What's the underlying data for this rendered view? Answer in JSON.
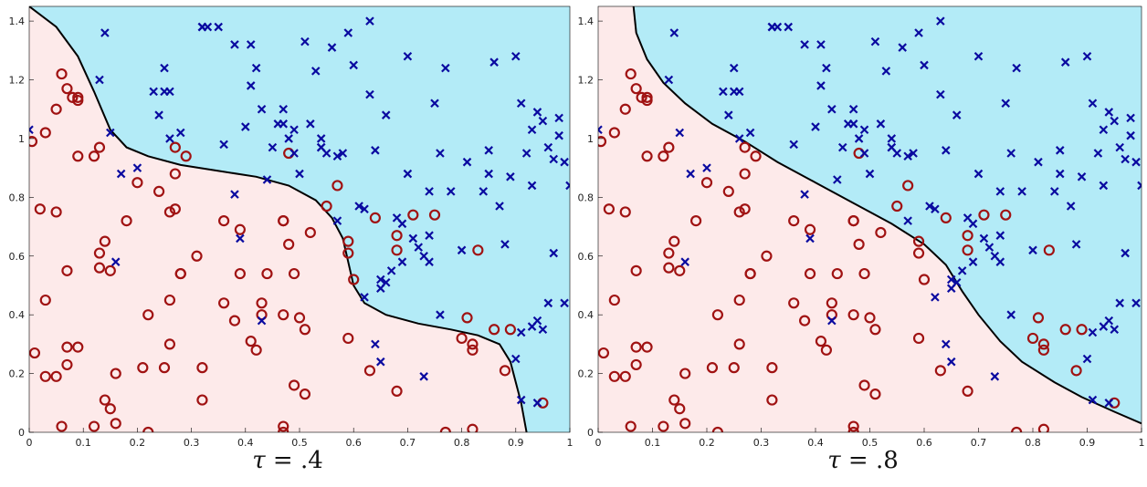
{
  "colors": {
    "class_a_region": "#fdeaea",
    "class_b_region": "#b3ebf7",
    "class_a_marker": "#a01212",
    "class_b_marker": "#0a0aa0",
    "boundary": "#000000"
  },
  "chart_data": [
    {
      "type": "scatter",
      "caption_symbol": "τ",
      "caption_value": "= .4",
      "xlim": [
        0,
        1
      ],
      "ylim": [
        0,
        1.45
      ],
      "xticks": [
        "0",
        "0.1",
        "0.2",
        "0.3",
        "0.4",
        "0.5",
        "0.6",
        "0.7",
        "0.8",
        "0.9",
        "1"
      ],
      "yticks": [
        "0",
        "0.2",
        "0.4",
        "0.6",
        "0.8",
        "1",
        "1.2",
        "1.4"
      ],
      "grid": false,
      "boundary": [
        [
          0.0,
          1.45
        ],
        [
          0.05,
          1.38
        ],
        [
          0.09,
          1.28
        ],
        [
          0.12,
          1.16
        ],
        [
          0.15,
          1.03
        ],
        [
          0.18,
          0.97
        ],
        [
          0.22,
          0.94
        ],
        [
          0.28,
          0.91
        ],
        [
          0.35,
          0.89
        ],
        [
          0.42,
          0.87
        ],
        [
          0.48,
          0.84
        ],
        [
          0.53,
          0.79
        ],
        [
          0.56,
          0.73
        ],
        [
          0.58,
          0.66
        ],
        [
          0.59,
          0.58
        ],
        [
          0.6,
          0.5
        ],
        [
          0.62,
          0.44
        ],
        [
          0.66,
          0.4
        ],
        [
          0.72,
          0.37
        ],
        [
          0.78,
          0.35
        ],
        [
          0.83,
          0.33
        ],
        [
          0.87,
          0.3
        ],
        [
          0.89,
          0.24
        ],
        [
          0.91,
          0.1
        ],
        [
          0.92,
          0.0
        ]
      ]
    },
    {
      "type": "scatter",
      "caption_symbol": "τ",
      "caption_value": "= .8",
      "xlim": [
        0,
        1
      ],
      "ylim": [
        0,
        1.45
      ],
      "xticks": [
        "0",
        "0.1",
        "0.2",
        "0.3",
        "0.4",
        "0.5",
        "0.6",
        "0.7",
        "0.8",
        "0.9",
        "1"
      ],
      "yticks": [
        "0",
        "0.2",
        "0.4",
        "0.6",
        "0.8",
        "1",
        "1.2",
        "1.4"
      ],
      "grid": false,
      "boundary": [
        [
          0.065,
          1.45
        ],
        [
          0.07,
          1.36
        ],
        [
          0.09,
          1.27
        ],
        [
          0.12,
          1.19
        ],
        [
          0.16,
          1.12
        ],
        [
          0.21,
          1.05
        ],
        [
          0.27,
          0.99
        ],
        [
          0.33,
          0.92
        ],
        [
          0.4,
          0.85
        ],
        [
          0.47,
          0.78
        ],
        [
          0.54,
          0.71
        ],
        [
          0.6,
          0.64
        ],
        [
          0.64,
          0.57
        ],
        [
          0.67,
          0.48
        ],
        [
          0.7,
          0.4
        ],
        [
          0.74,
          0.31
        ],
        [
          0.78,
          0.24
        ],
        [
          0.84,
          0.17
        ],
        [
          0.89,
          0.12
        ],
        [
          0.95,
          0.07
        ],
        [
          1.0,
          0.03
        ]
      ]
    }
  ],
  "points": {
    "class_a_marker": "circle",
    "class_b_marker": "cross",
    "class_a": [
      [
        0.005,
        0.99
      ],
      [
        0.03,
        1.02
      ],
      [
        0.05,
        1.1
      ],
      [
        0.06,
        1.22
      ],
      [
        0.07,
        1.17
      ],
      [
        0.09,
        1.14
      ],
      [
        0.09,
        1.13
      ],
      [
        0.08,
        1.14
      ],
      [
        0.09,
        0.94
      ],
      [
        0.12,
        0.94
      ],
      [
        0.13,
        0.97
      ],
      [
        0.02,
        0.76
      ],
      [
        0.05,
        0.75
      ],
      [
        0.03,
        0.45
      ],
      [
        0.07,
        0.55
      ],
      [
        0.13,
        0.56
      ],
      [
        0.13,
        0.61
      ],
      [
        0.14,
        0.65
      ],
      [
        0.15,
        0.55
      ],
      [
        0.18,
        0.72
      ],
      [
        0.2,
        0.85
      ],
      [
        0.24,
        0.82
      ],
      [
        0.26,
        0.75
      ],
      [
        0.27,
        0.76
      ],
      [
        0.27,
        0.97
      ],
      [
        0.29,
        0.94
      ],
      [
        0.27,
        0.88
      ],
      [
        0.28,
        0.54
      ],
      [
        0.31,
        0.6
      ],
      [
        0.36,
        0.72
      ],
      [
        0.39,
        0.54
      ],
      [
        0.39,
        0.69
      ],
      [
        0.44,
        0.54
      ],
      [
        0.47,
        0.72
      ],
      [
        0.47,
        0.72
      ],
      [
        0.48,
        0.95
      ],
      [
        0.48,
        0.64
      ],
      [
        0.47,
        0.4
      ],
      [
        0.49,
        0.54
      ],
      [
        0.52,
        0.68
      ],
      [
        0.55,
        0.77
      ],
      [
        0.57,
        0.84
      ],
      [
        0.59,
        0.65
      ],
      [
        0.59,
        0.61
      ],
      [
        0.6,
        0.52
      ],
      [
        0.64,
        0.73
      ],
      [
        0.68,
        0.62
      ],
      [
        0.68,
        0.67
      ],
      [
        0.71,
        0.74
      ],
      [
        0.75,
        0.74
      ],
      [
        0.83,
        0.62
      ],
      [
        0.81,
        0.39
      ],
      [
        0.86,
        0.35
      ],
      [
        0.89,
        0.35
      ],
      [
        0.8,
        0.32
      ],
      [
        0.82,
        0.3
      ],
      [
        0.82,
        0.28
      ],
      [
        0.88,
        0.21
      ],
      [
        0.95,
        0.1
      ],
      [
        0.82,
        0.01
      ],
      [
        0.77,
        0.0
      ],
      [
        0.68,
        0.14
      ],
      [
        0.63,
        0.21
      ],
      [
        0.59,
        0.32
      ],
      [
        0.5,
        0.39
      ],
      [
        0.51,
        0.35
      ],
      [
        0.49,
        0.16
      ],
      [
        0.51,
        0.13
      ],
      [
        0.47,
        0.02
      ],
      [
        0.47,
        0.0
      ],
      [
        0.43,
        0.4
      ],
      [
        0.43,
        0.44
      ],
      [
        0.38,
        0.38
      ],
      [
        0.41,
        0.31
      ],
      [
        0.42,
        0.28
      ],
      [
        0.36,
        0.44
      ],
      [
        0.32,
        0.22
      ],
      [
        0.32,
        0.11
      ],
      [
        0.28,
        0.54
      ],
      [
        0.26,
        0.45
      ],
      [
        0.26,
        0.3
      ],
      [
        0.25,
        0.22
      ],
      [
        0.22,
        0.4
      ],
      [
        0.21,
        0.22
      ],
      [
        0.22,
        0.0
      ],
      [
        0.16,
        0.2
      ],
      [
        0.16,
        0.03
      ],
      [
        0.14,
        0.11
      ],
      [
        0.15,
        0.08
      ],
      [
        0.12,
        0.02
      ],
      [
        0.09,
        0.29
      ],
      [
        0.07,
        0.29
      ],
      [
        0.07,
        0.23
      ],
      [
        0.05,
        0.19
      ],
      [
        0.03,
        0.19
      ],
      [
        0.01,
        0.27
      ],
      [
        0.06,
        0.02
      ]
    ],
    "class_b": [
      [
        0.0,
        1.03
      ],
      [
        0.13,
        1.2
      ],
      [
        0.14,
        1.36
      ],
      [
        0.15,
        1.02
      ],
      [
        0.17,
        0.88
      ],
      [
        0.2,
        0.9
      ],
      [
        0.23,
        1.16
      ],
      [
        0.24,
        1.08
      ],
      [
        0.25,
        1.16
      ],
      [
        0.25,
        1.24
      ],
      [
        0.26,
        1.0
      ],
      [
        0.26,
        1.16
      ],
      [
        0.28,
        1.02
      ],
      [
        0.32,
        1.38
      ],
      [
        0.32,
        1.38
      ],
      [
        0.33,
        1.38
      ],
      [
        0.35,
        1.38
      ],
      [
        0.36,
        0.98
      ],
      [
        0.38,
        1.32
      ],
      [
        0.4,
        1.04
      ],
      [
        0.41,
        1.32
      ],
      [
        0.41,
        1.18
      ],
      [
        0.42,
        1.24
      ],
      [
        0.43,
        1.1
      ],
      [
        0.45,
        0.97
      ],
      [
        0.46,
        1.05
      ],
      [
        0.47,
        1.05
      ],
      [
        0.47,
        1.1
      ],
      [
        0.48,
        1.0
      ],
      [
        0.49,
        1.03
      ],
      [
        0.5,
        0.88
      ],
      [
        0.51,
        1.33
      ],
      [
        0.52,
        1.05
      ],
      [
        0.53,
        1.23
      ],
      [
        0.54,
        1.0
      ],
      [
        0.54,
        0.97
      ],
      [
        0.55,
        0.95
      ],
      [
        0.56,
        1.31
      ],
      [
        0.57,
        0.72
      ],
      [
        0.58,
        0.95
      ],
      [
        0.59,
        1.36
      ],
      [
        0.6,
        1.25
      ],
      [
        0.62,
        0.76
      ],
      [
        0.63,
        1.4
      ],
      [
        0.63,
        1.15
      ],
      [
        0.64,
        0.96
      ],
      [
        0.65,
        0.52
      ],
      [
        0.66,
        1.08
      ],
      [
        0.67,
        0.55
      ],
      [
        0.68,
        0.73
      ],
      [
        0.69,
        0.71
      ],
      [
        0.7,
        0.88
      ],
      [
        0.7,
        1.28
      ],
      [
        0.71,
        0.66
      ],
      [
        0.72,
        0.63
      ],
      [
        0.73,
        0.6
      ],
      [
        0.74,
        0.82
      ],
      [
        0.75,
        1.12
      ],
      [
        0.76,
        0.95
      ],
      [
        0.77,
        1.24
      ],
      [
        0.78,
        0.82
      ],
      [
        0.8,
        0.62
      ],
      [
        0.81,
        0.92
      ],
      [
        0.84,
        0.82
      ],
      [
        0.85,
        0.96
      ],
      [
        0.85,
        0.88
      ],
      [
        0.86,
        1.26
      ],
      [
        0.87,
        0.77
      ],
      [
        0.88,
        0.64
      ],
      [
        0.89,
        0.87
      ],
      [
        0.9,
        1.28
      ],
      [
        0.91,
        1.12
      ],
      [
        0.92,
        0.95
      ],
      [
        0.93,
        1.03
      ],
      [
        0.94,
        1.09
      ],
      [
        0.95,
        1.06
      ],
      [
        0.96,
        0.97
      ],
      [
        0.97,
        0.93
      ],
      [
        0.98,
        1.01
      ],
      [
        0.98,
        1.07
      ],
      [
        0.99,
        0.92
      ],
      [
        1.0,
        0.84
      ],
      [
        0.97,
        0.61
      ],
      [
        0.96,
        0.44
      ],
      [
        0.94,
        0.38
      ],
      [
        0.93,
        0.36
      ],
      [
        0.91,
        0.34
      ],
      [
        0.9,
        0.25
      ],
      [
        0.91,
        0.11
      ],
      [
        0.94,
        0.1
      ],
      [
        0.93,
        0.84
      ],
      [
        0.95,
        0.35
      ],
      [
        0.99,
        0.44
      ],
      [
        0.76,
        0.4
      ],
      [
        0.73,
        0.19
      ],
      [
        0.65,
        0.24
      ],
      [
        0.64,
        0.3
      ],
      [
        0.62,
        0.46
      ],
      [
        0.65,
        0.49
      ],
      [
        0.69,
        0.58
      ],
      [
        0.43,
        0.38
      ],
      [
        0.39,
        0.66
      ],
      [
        0.38,
        0.81
      ],
      [
        0.16,
        0.58
      ],
      [
        0.44,
        0.86
      ],
      [
        0.49,
        0.95
      ],
      [
        0.54,
        0.97
      ],
      [
        0.57,
        0.94
      ],
      [
        0.61,
        0.77
      ],
      [
        0.66,
        0.51
      ],
      [
        0.74,
        0.67
      ],
      [
        0.74,
        0.58
      ]
    ]
  }
}
